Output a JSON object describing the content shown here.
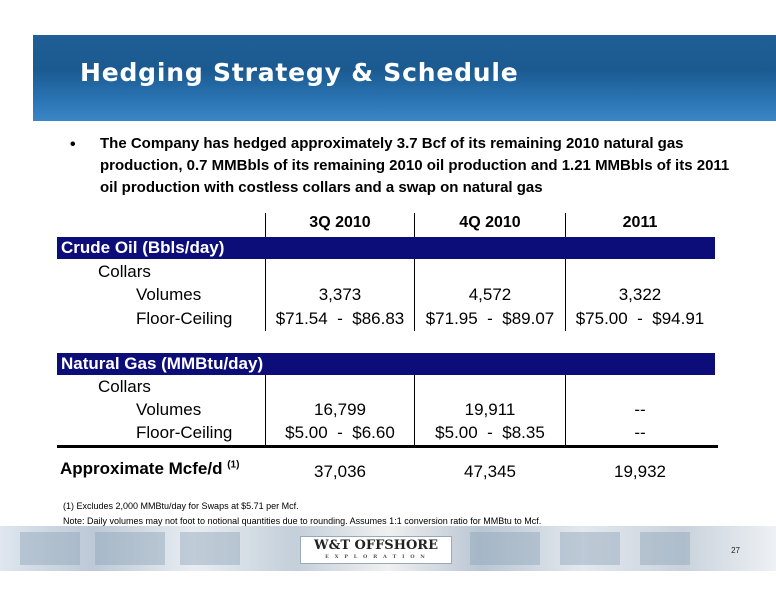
{
  "title": "Hedging Strategy & Schedule",
  "bullet": "The Company has hedged approximately 3.7 Bcf of its remaining 2010 natural gas production, 0.7 MMBbls of its remaining 2010 oil production and 1.21 MMBbls of its 2011 oil production with costless collars and a swap on natural gas",
  "bullet_marker": "•",
  "columns": [
    "3Q 2010",
    "4Q 2010",
    "2011"
  ],
  "crude": {
    "label": "Crude Oil (Bbls/day)",
    "sub": "Collars",
    "volumes_label": "Volumes",
    "volumes": [
      "3,373",
      "4,572",
      "3,322"
    ],
    "floor_label": "Floor-Ceiling",
    "floor": [
      "$71.54  -  $86.83",
      "$71.95  -  $89.07",
      "$75.00  -  $94.91"
    ]
  },
  "gas": {
    "label": "Natural Gas (MMBtu/day)",
    "sub": "Collars",
    "volumes_label": "Volumes",
    "volumes": [
      "16,799",
      "19,911",
      "--"
    ],
    "floor_label": "Floor-Ceiling",
    "floor": [
      "$5.00  -  $6.60",
      "$5.00  -  $8.35",
      "--"
    ]
  },
  "total": {
    "label": "Approximate Mcfe/d",
    "sup": "(1)",
    "values": [
      "37,036",
      "47,345",
      "19,932"
    ]
  },
  "footnote1": "(1)   Excludes 2,000 MMBtu/day for Swaps at $5.71 per Mcf.",
  "footnote2": "Note: Daily volumes may not foot to notional quantities due to rounding.  Assumes 1:1 conversion ratio for MMBtu to Mcf.",
  "logo": {
    "main": "W&T OFFSHORE",
    "tagline": "E X P L O R A T I O N"
  },
  "page_number": "27",
  "colors": {
    "title_bar": "#1f5f96",
    "band": "#0d0d7a"
  }
}
